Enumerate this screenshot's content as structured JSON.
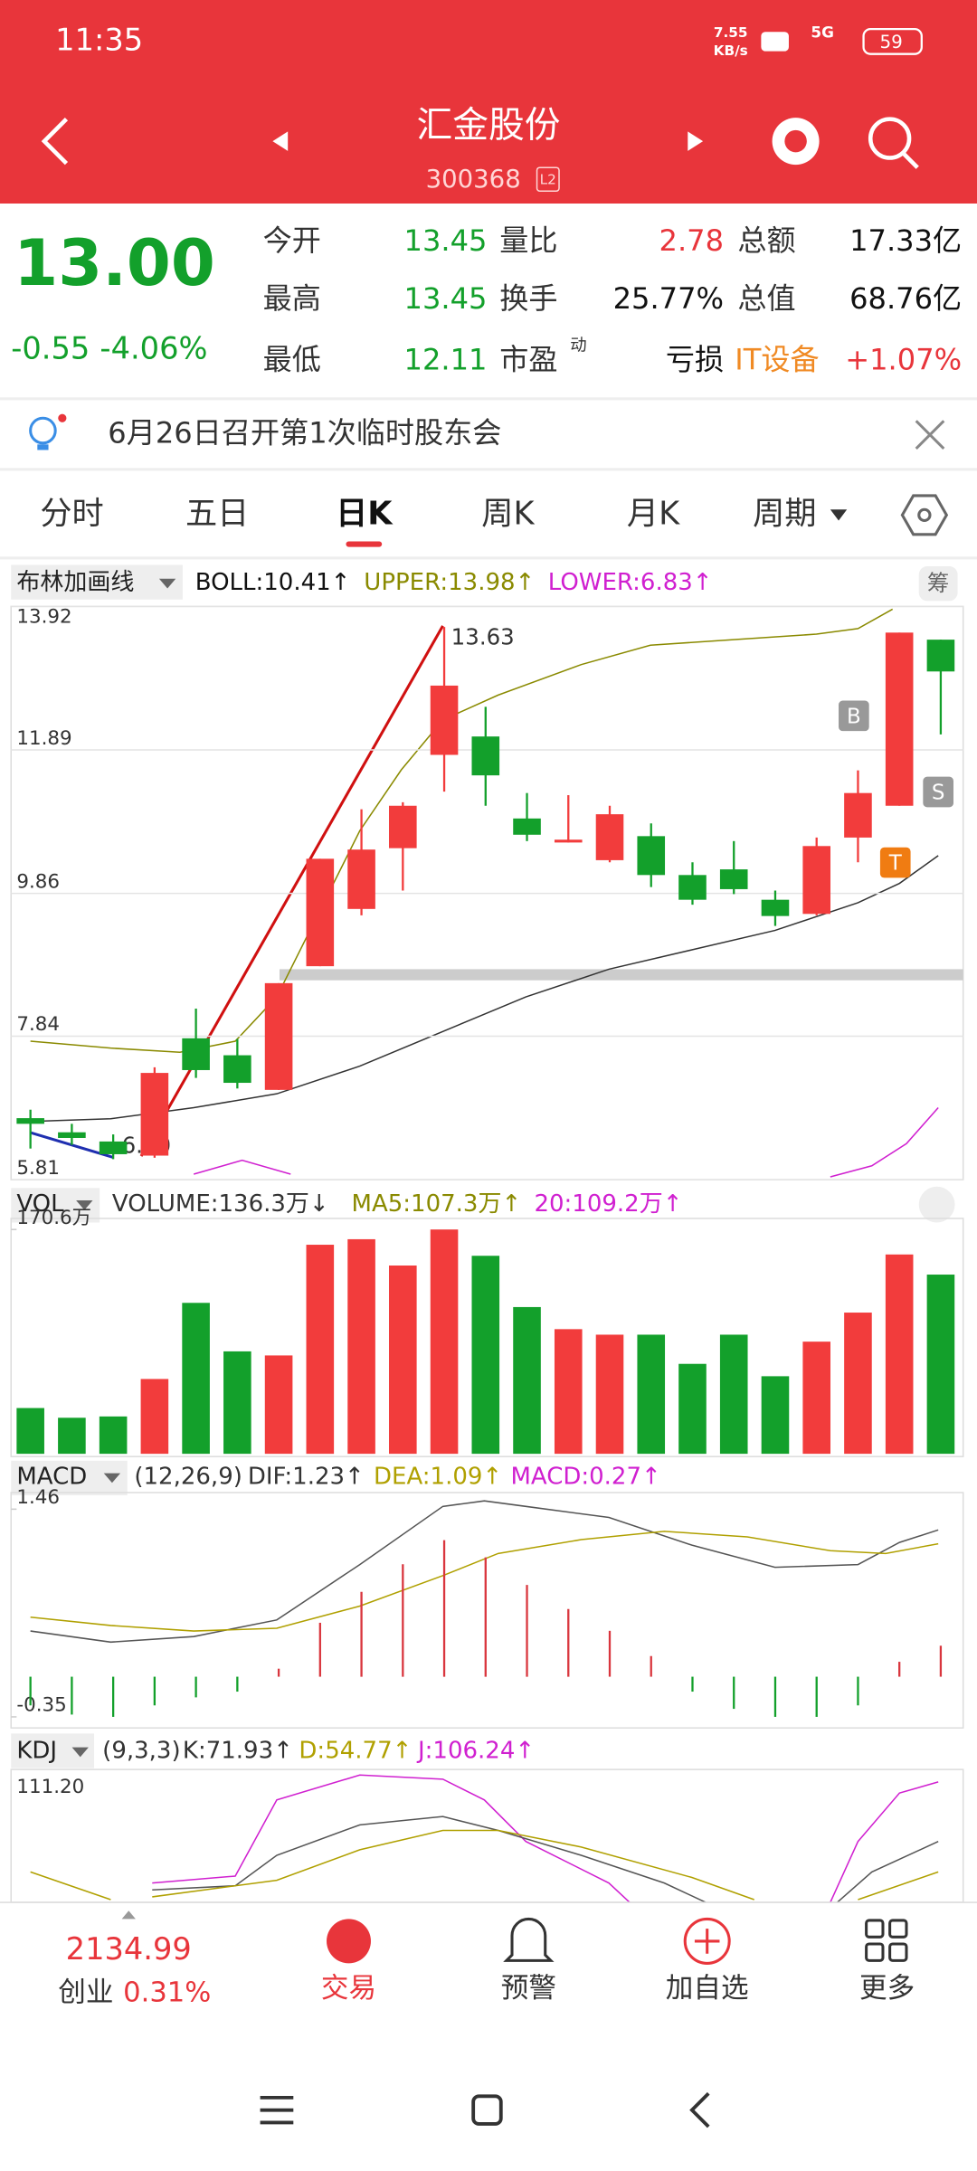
{
  "status": {
    "time": "11:35",
    "speed": "7.55",
    "speed_unit": "KB/s",
    "network": "5G",
    "battery": "59"
  },
  "header": {
    "title": "汇金股份",
    "code": "300368",
    "badge": "L2"
  },
  "quote": {
    "price": "13.00",
    "change": "-0.55",
    "change_pct": "-4.06%",
    "fields": [
      {
        "label": "今开",
        "value": "13.45"
      },
      {
        "label": "量比",
        "value": "2.78"
      },
      {
        "label": "总额",
        "value": "17.33亿"
      },
      {
        "label": "最高",
        "value": "13.45"
      },
      {
        "label": "换手",
        "value": "25.77%"
      },
      {
        "label": "总值",
        "value": "68.76亿"
      },
      {
        "label": "最低",
        "value": "12.11"
      },
      {
        "label": "市盈",
        "sup": "动",
        "value": "亏损"
      },
      {
        "label": "IT设备",
        "value": "+1.07%"
      }
    ]
  },
  "notice": "6月26日召开第1次临时股东会",
  "tabs": [
    "分时",
    "五日",
    "日K",
    "周K",
    "月K",
    "周期"
  ],
  "boll": {
    "name": "布林加画线",
    "boll": "BOLL:10.41↑",
    "upper": "UPPER:13.98↑",
    "lower": "LOWER:6.83↑",
    "chips": "筹"
  },
  "annotations": [
    "13.63",
    "6.10"
  ],
  "markers": [
    "B",
    "S",
    "T"
  ],
  "vol": {
    "name": "VOL",
    "volume": "VOLUME:136.3万↓",
    "ma5": "MA5:107.3万↑",
    "ma20": "20:109.2万↑"
  },
  "macd": {
    "name": "MACD",
    "params": "(12,26,9)",
    "dif": "DIF:1.23↑",
    "dea": "DEA:1.09↑",
    "macd": "MACD:0.27↑"
  },
  "kdj": {
    "name": "KDJ",
    "params": "(9,3,3)",
    "k": "K:71.93↑",
    "d": "D:54.77↑",
    "j": "J:106.24↑",
    "top": "111.20"
  },
  "index": {
    "value": "2134.99",
    "name": "创业",
    "change": "0.31%"
  },
  "nav": [
    "交易",
    "预警",
    "加自选",
    "更多"
  ],
  "chart_data": [
    {
      "type": "candlestick",
      "up_color": "#f23c3c",
      "down_color": "#13a02b",
      "open": [
        6.68,
        6.48,
        6.35,
        6.15,
        7.81,
        7.57,
        7.08,
        8.83,
        9.64,
        10.5,
        11.82,
        12.08,
        10.92,
        10.58,
        10.33,
        10.67,
        10.12,
        10.2,
        9.77,
        9.57,
        10.65,
        11.1,
        13.45
      ],
      "high": [
        6.8,
        6.6,
        6.45,
        7.4,
        8.23,
        7.8,
        8.59,
        10.35,
        11.05,
        11.15,
        13.63,
        12.5,
        11.28,
        11.25,
        11.1,
        10.85,
        10.3,
        10.6,
        9.9,
        10.65,
        11.6,
        13.55,
        13.45
      ],
      "low": [
        6.25,
        6.3,
        6.1,
        6.12,
        7.25,
        7.1,
        7.08,
        8.83,
        9.55,
        9.9,
        11.3,
        11.1,
        10.6,
        10.58,
        10.3,
        9.95,
        9.7,
        9.85,
        9.4,
        9.55,
        10.3,
        11.1,
        12.11
      ],
      "close": [
        6.6,
        6.4,
        6.17,
        7.32,
        7.36,
        7.18,
        8.59,
        10.35,
        10.48,
        11.1,
        12.8,
        11.53,
        10.69,
        10.62,
        10.98,
        10.12,
        9.77,
        9.92,
        9.54,
        10.53,
        11.28,
        13.55,
        13.0
      ],
      "ylim": [
        5.81,
        13.92
      ],
      "yticks": [
        13.92,
        11.89,
        9.86,
        7.84,
        5.81
      ],
      "grid": true
    },
    {
      "type": "bar",
      "up_color": "#f23c3c",
      "down_color": "#13a02b",
      "values": [
        34.8,
        27.4,
        28.4,
        56.9,
        114.8,
        77.9,
        74.8,
        159,
        163.2,
        143.2,
        170.6,
        150.6,
        111.6,
        94.8,
        90.6,
        90.6,
        68.4,
        90.6,
        59,
        85.3,
        107.4,
        151.6,
        136.3
      ],
      "ylim": [
        0,
        170.6
      ],
      "yticks": [
        {
          "value": 170.6,
          "label": "170.6万"
        }
      ]
    },
    {
      "type": "macd",
      "up_color": "#d9363e",
      "down_color": "#13a02b",
      "values": [
        -0.25,
        -0.33,
        -0.35,
        -0.25,
        -0.18,
        -0.13,
        0.07,
        0.47,
        0.74,
        0.98,
        1.19,
        1.04,
        0.8,
        0.59,
        0.4,
        0.18,
        -0.13,
        -0.28,
        -0.35,
        -0.35,
        -0.25,
        0.13,
        0.27
      ],
      "ylim": [
        -0.35,
        1.46
      ],
      "yticks": [
        1.46,
        -0.35
      ]
    }
  ]
}
